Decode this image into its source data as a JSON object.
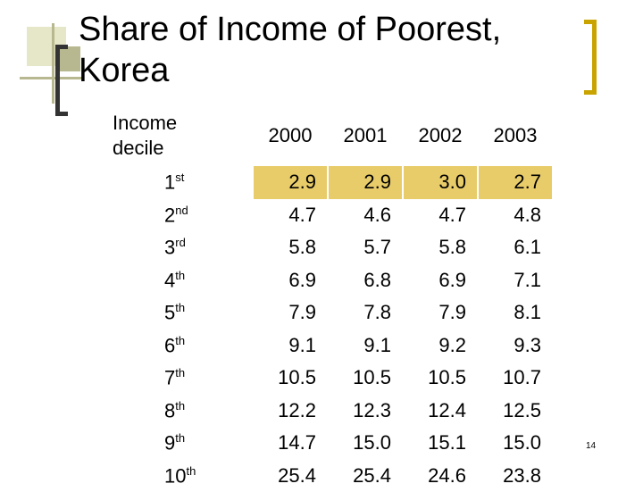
{
  "title_line1": "Share of Income of Poorest,",
  "title_line2": "Korea",
  "slide_number": "14",
  "table": {
    "header": {
      "decile_label_line1": "Income",
      "decile_label_line2": "decile",
      "years": [
        "2000",
        "2001",
        "2002",
        "2003"
      ]
    },
    "rows": [
      {
        "decile": "1",
        "suffix": "st",
        "values": [
          "2.9",
          "2.9",
          "3.0",
          "2.7"
        ]
      },
      {
        "decile": "2",
        "suffix": "nd",
        "values": [
          "4.7",
          "4.6",
          "4.7",
          "4.8"
        ]
      },
      {
        "decile": "3",
        "suffix": "rd",
        "values": [
          "5.8",
          "5.7",
          "5.8",
          "6.1"
        ]
      },
      {
        "decile": "4",
        "suffix": "th",
        "values": [
          "6.9",
          "6.8",
          "6.9",
          "7.1"
        ]
      },
      {
        "decile": "5",
        "suffix": "th",
        "values": [
          "7.9",
          "7.8",
          "7.9",
          "8.1"
        ]
      },
      {
        "decile": "6",
        "suffix": "th",
        "values": [
          "9.1",
          "9.1",
          "9.2",
          "9.3"
        ]
      },
      {
        "decile": "7",
        "suffix": "th",
        "values": [
          "10.5",
          "10.5",
          "10.5",
          "10.7"
        ]
      },
      {
        "decile": "8",
        "suffix": "th",
        "values": [
          "12.2",
          "12.3",
          "12.4",
          "12.5"
        ]
      },
      {
        "decile": "9",
        "suffix": "th",
        "values": [
          "14.7",
          "15.0",
          "15.1",
          "15.0"
        ]
      },
      {
        "decile": "10",
        "suffix": "th",
        "values": [
          "25.4",
          "25.4",
          "24.6",
          "23.8"
        ]
      }
    ]
  },
  "colors": {
    "highlight_row": "#e8cc6a",
    "bracket_accent": "#c9a400",
    "decor_olive": "#b8b890"
  }
}
